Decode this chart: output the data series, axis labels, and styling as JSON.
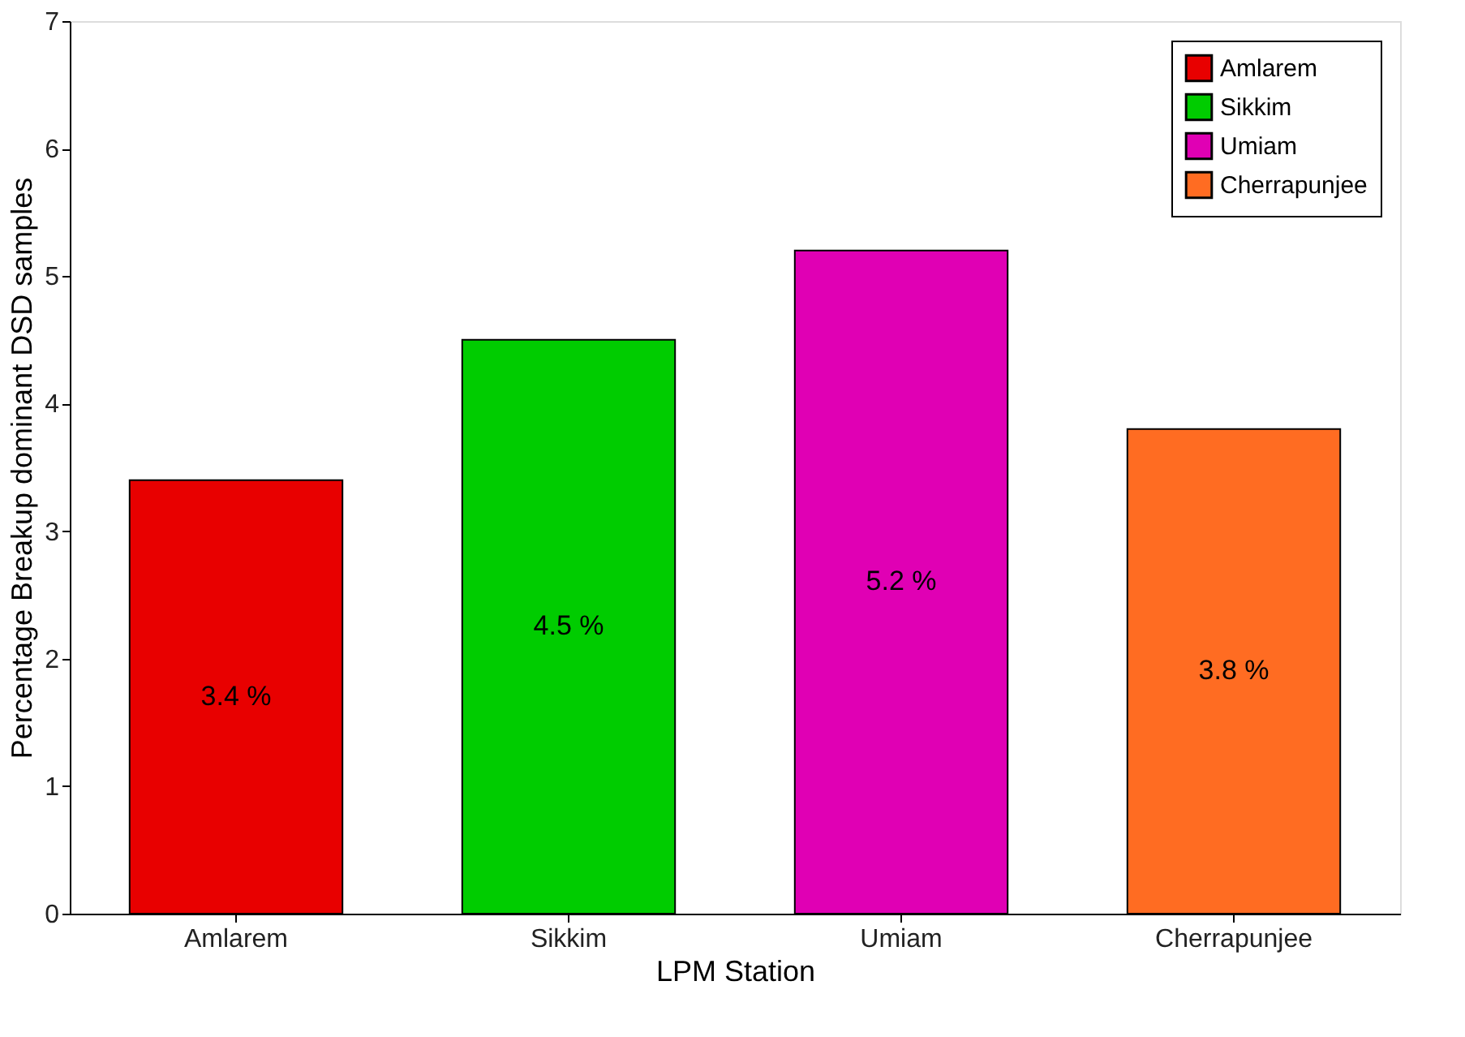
{
  "chart_data": {
    "type": "bar",
    "xlabel": "LPM Station",
    "ylabel": "Percentage Breakup dominant DSD samples",
    "categories": [
      "Amlarem",
      "Sikkim",
      "Umiam",
      "Cherrapunjee"
    ],
    "series": [
      {
        "name": "Amlarem",
        "color": "#e80000",
        "values": [
          3.4,
          null,
          null,
          null
        ],
        "value_labels": [
          "3.4 %",
          null,
          null,
          null
        ]
      },
      {
        "name": "Sikkim",
        "color": "#00cc00",
        "values": [
          null,
          4.5,
          null,
          null
        ],
        "value_labels": [
          null,
          "4.5 %",
          null,
          null
        ]
      },
      {
        "name": "Umiam",
        "color": "#e000b4",
        "values": [
          null,
          null,
          5.2,
          null
        ],
        "value_labels": [
          null,
          null,
          "5.2 %",
          null
        ]
      },
      {
        "name": "Cherrapunjee",
        "color": "#ff6c22",
        "values": [
          null,
          null,
          null,
          3.8
        ],
        "value_labels": [
          null,
          null,
          null,
          "3.8 %"
        ]
      }
    ],
    "ylim": [
      0,
      7
    ],
    "yticks": [
      0,
      1,
      2,
      3,
      4,
      5,
      6,
      7
    ],
    "legend": "top right",
    "grid": false
  }
}
